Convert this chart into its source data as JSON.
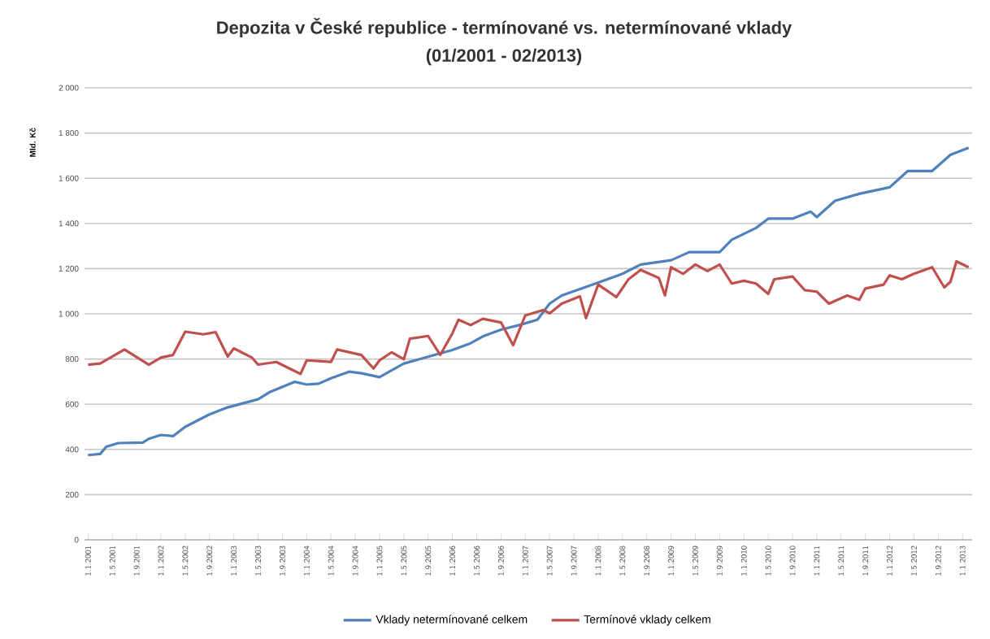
{
  "chart_data": {
    "type": "line",
    "title": "Depozita v České republice - termínované vs. netermínované vklady",
    "subtitle": "(01/2001 - 02/2013)",
    "ylabel": "Mld. Kč",
    "xlim": [
      "2001-01",
      "2013-02"
    ],
    "xticks": [
      {
        "value": "2001-01",
        "label": "1.1.2001"
      },
      {
        "value": "2001-05",
        "label": "1.5.2001"
      },
      {
        "value": "2001-09",
        "label": "1.9.2001"
      },
      {
        "value": "2002-01",
        "label": "1.1.2002"
      },
      {
        "value": "2002-05",
        "label": "1.5.2002"
      },
      {
        "value": "2002-09",
        "label": "1.9.2002"
      },
      {
        "value": "2003-01",
        "label": "1.1.2003"
      },
      {
        "value": "2003-05",
        "label": "1.5.2003"
      },
      {
        "value": "2003-09",
        "label": "1.9.2003"
      },
      {
        "value": "2004-01",
        "label": "1.1.2004"
      },
      {
        "value": "2004-05",
        "label": "1.5.2004"
      },
      {
        "value": "2004-09",
        "label": "1.9.2004"
      },
      {
        "value": "2005-01",
        "label": "1.1.2005"
      },
      {
        "value": "2005-05",
        "label": "1.5.2005"
      },
      {
        "value": "2005-09",
        "label": "1.9.2005"
      },
      {
        "value": "2006-01",
        "label": "1.1.2006"
      },
      {
        "value": "2006-05",
        "label": "1.5.2006"
      },
      {
        "value": "2006-09",
        "label": "1.9.2006"
      },
      {
        "value": "2007-01",
        "label": "1.1.2007"
      },
      {
        "value": "2007-05",
        "label": "1.5.2007"
      },
      {
        "value": "2007-09",
        "label": "1.9.2007"
      },
      {
        "value": "2008-01",
        "label": "1.1.2008"
      },
      {
        "value": "2008-05",
        "label": "1.5.2008"
      },
      {
        "value": "2008-09",
        "label": "1.9.2008"
      },
      {
        "value": "2009-01",
        "label": "1.1.2009"
      },
      {
        "value": "2009-05",
        "label": "1.5.2009"
      },
      {
        "value": "2009-09",
        "label": "1.9.2009"
      },
      {
        "value": "2010-01",
        "label": "1.1.2010"
      },
      {
        "value": "2010-05",
        "label": "1.5.2010"
      },
      {
        "value": "2010-09",
        "label": "1.9.2010"
      },
      {
        "value": "2011-01",
        "label": "1.1.2011"
      },
      {
        "value": "2011-05",
        "label": "1.5.2011"
      },
      {
        "value": "2011-09",
        "label": "1.9.2011"
      },
      {
        "value": "2012-01",
        "label": "1.1.2012"
      },
      {
        "value": "2012-05",
        "label": "1.5.2012"
      },
      {
        "value": "2012-09",
        "label": "1.9.2012"
      },
      {
        "value": "2013-01",
        "label": "1.1.2013"
      }
    ],
    "ylim": [
      0,
      2000
    ],
    "yticks": [
      0,
      200,
      400,
      600,
      800,
      {
        "value": 1000,
        "label": "1 000"
      },
      {
        "value": 1200,
        "label": "1 200"
      },
      {
        "value": 1400,
        "label": "1 400"
      },
      {
        "value": 1600,
        "label": "1 600"
      },
      {
        "value": 1800,
        "label": "1 800"
      },
      {
        "value": 2000,
        "label": "2 000"
      }
    ],
    "grid": "y",
    "legend": "bottom",
    "series": [
      {
        "name": "Vklady netermínované celkem",
        "color": "#4f81bd",
        "x": [
          "2001-01",
          "2001-03",
          "2001-04",
          "2001-06",
          "2001-10",
          "2001-11",
          "2002-01",
          "2002-03",
          "2002-05",
          "2002-09",
          "2002-12",
          "2003-05",
          "2003-07",
          "2003-11",
          "2004-01",
          "2004-03",
          "2004-05",
          "2004-08",
          "2004-10",
          "2005-01",
          "2005-05",
          "2005-09",
          "2006-01",
          "2006-04",
          "2006-06",
          "2006-09",
          "2006-12",
          "2007-03",
          "2007-05",
          "2007-07",
          "2007-12",
          "2008-05",
          "2008-08",
          "2009-01",
          "2009-04",
          "2009-09",
          "2009-11",
          "2010-03",
          "2010-05",
          "2010-09",
          "2010-12",
          "2011-01",
          "2011-04",
          "2011-08",
          "2012-01",
          "2012-04",
          "2012-08",
          "2012-11",
          "2013-02"
        ],
        "values": [
          375,
          380,
          412,
          428,
          430,
          447,
          464,
          459,
          500,
          555,
          586,
          622,
          655,
          699,
          687,
          691,
          715,
          744,
          737,
          720,
          780,
          810,
          840,
          870,
          900,
          930,
          950,
          974,
          1045,
          1081,
          1129,
          1177,
          1218,
          1237,
          1273,
          1273,
          1328,
          1380,
          1421,
          1421,
          1452,
          1428,
          1500,
          1531,
          1560,
          1632,
          1632,
          1703,
          1735
        ]
      },
      {
        "name": "Termínové vklady celkem",
        "color": "#c0504d",
        "x": [
          "2001-01",
          "2001-03",
          "2001-07",
          "2001-11",
          "2002-01",
          "2002-03",
          "2002-05",
          "2002-08",
          "2002-10",
          "2002-12",
          "2003-01",
          "2003-04",
          "2003-05",
          "2003-08",
          "2003-12",
          "2004-01",
          "2004-05",
          "2004-06",
          "2004-10",
          "2004-12",
          "2005-01",
          "2005-03",
          "2005-05",
          "2005-06",
          "2005-09",
          "2005-11",
          "2006-01",
          "2006-02",
          "2006-04",
          "2006-06",
          "2006-09",
          "2006-11",
          "2007-01",
          "2007-04",
          "2007-05",
          "2007-07",
          "2007-10",
          "2007-11",
          "2008-01",
          "2008-04",
          "2008-06",
          "2008-08",
          "2008-11",
          "2008-12",
          "2009-01",
          "2009-03",
          "2009-05",
          "2009-07",
          "2009-09",
          "2009-11",
          "2010-01",
          "2010-03",
          "2010-05",
          "2010-06",
          "2010-09",
          "2010-11",
          "2011-01",
          "2011-03",
          "2011-06",
          "2011-08",
          "2011-09",
          "2011-12",
          "2012-01",
          "2012-03",
          "2012-05",
          "2012-08",
          "2012-10",
          "2012-11",
          "2012-12",
          "2013-02"
        ],
        "values": [
          775,
          780,
          842,
          775,
          806,
          818,
          921,
          909,
          919,
          811,
          847,
          806,
          775,
          787,
          734,
          794,
          787,
          842,
          818,
          758,
          794,
          830,
          799,
          890,
          902,
          818,
          914,
          974,
          950,
          978,
          962,
          861,
          993,
          1017,
          1002,
          1045,
          1077,
          981,
          1129,
          1074,
          1153,
          1194,
          1158,
          1081,
          1206,
          1177,
          1218,
          1189,
          1218,
          1134,
          1146,
          1134,
          1088,
          1153,
          1165,
          1105,
          1098,
          1045,
          1081,
          1062,
          1112,
          1129,
          1170,
          1153,
          1177,
          1206,
          1117,
          1141,
          1232,
          1206
        ]
      }
    ]
  }
}
